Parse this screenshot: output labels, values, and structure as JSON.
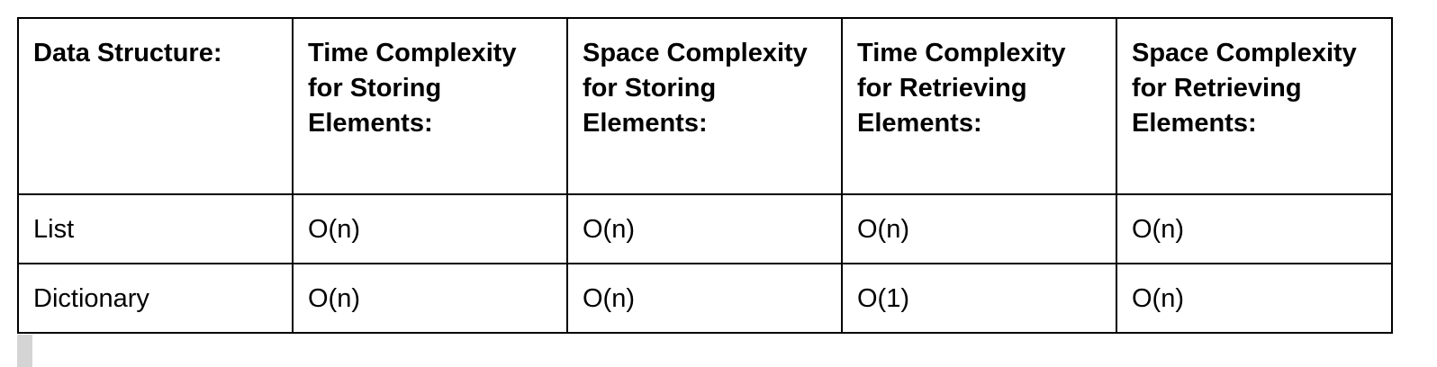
{
  "table": {
    "headers": [
      "Data Structure:",
      "Time Complexity for Storing Elements:",
      "Space Complexity for Storing Elements:",
      "Time Complexity for Retrieving Elements:",
      "Space Complexity for Retrieving Elements:"
    ],
    "rows": [
      [
        "List",
        "O(n)",
        "O(n)",
        "O(n)",
        "O(n)"
      ],
      [
        "Dictionary",
        "O(n)",
        "O(n)",
        "O(1)",
        "O(n)"
      ]
    ]
  }
}
